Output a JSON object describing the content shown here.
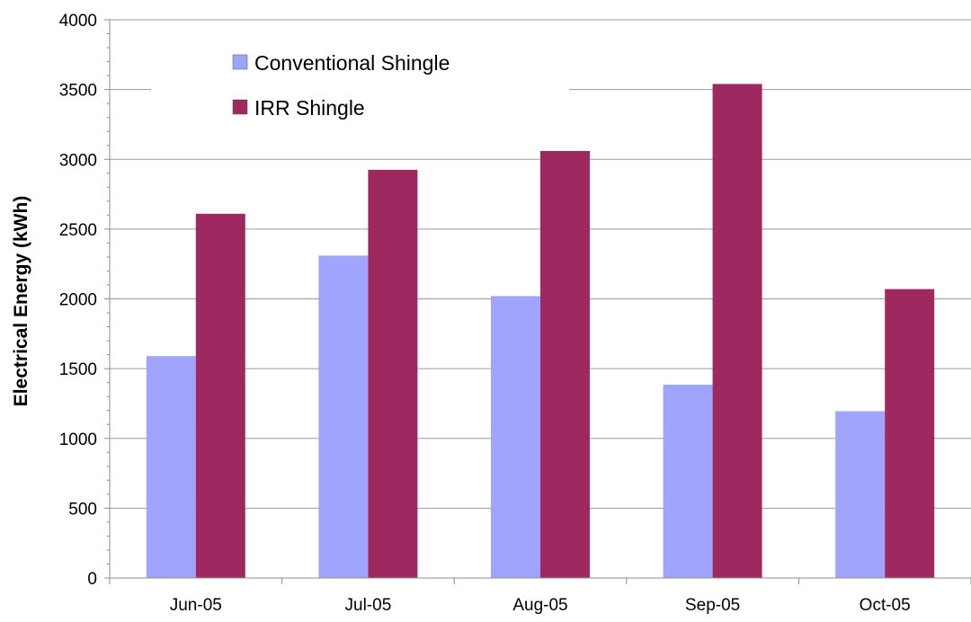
{
  "chart_data": {
    "type": "bar",
    "categories": [
      "Jun-05",
      "Jul-05",
      "Aug-05",
      "Sep-05",
      "Oct-05"
    ],
    "series": [
      {
        "name": "Conventional Shingle",
        "values": [
          1590,
          2310,
          2020,
          1385,
          1195
        ],
        "color": "#a0a4fc"
      },
      {
        "name": "IRR Shingle",
        "values": [
          2610,
          2925,
          3060,
          3540,
          2070
        ],
        "color": "#9e2860"
      }
    ],
    "xlabel": "",
    "ylabel": "Electrical Energy (kWh)",
    "ylim": [
      0,
      4000
    ],
    "yticks": [
      0,
      500,
      1000,
      1500,
      2000,
      2500,
      3000,
      3500,
      4000
    ],
    "grid": true,
    "legend_position": "top-left"
  }
}
